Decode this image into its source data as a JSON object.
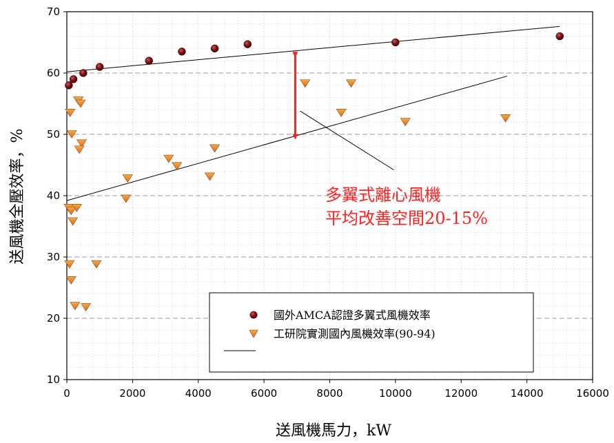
{
  "chart_data": {
    "type": "scatter",
    "xlabel": "送風機馬力，kW",
    "ylabel": "送風機全壓效率，%",
    "xlim": [
      0,
      16000
    ],
    "ylim": [
      10,
      70
    ],
    "x_ticks": [
      0,
      2000,
      4000,
      6000,
      8000,
      10000,
      12000,
      14000,
      16000
    ],
    "y_ticks": [
      10,
      20,
      30,
      40,
      50,
      60,
      70
    ],
    "grid": true,
    "legend_position": "bottom-right",
    "series": [
      {
        "name": "國外AMCA認證多翼式風機效率",
        "marker": "circle",
        "color": "#7a0f14",
        "points": [
          [
            60,
            58
          ],
          [
            200,
            59
          ],
          [
            500,
            60
          ],
          [
            1000,
            61
          ],
          [
            2500,
            62
          ],
          [
            3500,
            63.5
          ],
          [
            4500,
            64
          ],
          [
            5500,
            64.7
          ],
          [
            10000,
            65
          ],
          [
            15000,
            66
          ]
        ]
      },
      {
        "name": "工研院實測國內風機效率(90-94)",
        "marker": "triangle-down",
        "color": "#f08a1e",
        "points": [
          [
            100,
            53.5
          ],
          [
            150,
            50
          ],
          [
            350,
            55.5
          ],
          [
            420,
            55
          ],
          [
            450,
            48.5
          ],
          [
            380,
            47.5
          ],
          [
            60,
            38
          ],
          [
            130,
            37.5
          ],
          [
            300,
            38
          ],
          [
            180,
            35.8
          ],
          [
            80,
            28.8
          ],
          [
            130,
            26.2
          ],
          [
            250,
            22
          ],
          [
            580,
            21.8
          ],
          [
            900,
            28.8
          ],
          [
            1800,
            39.5
          ],
          [
            1850,
            42.8
          ],
          [
            3100,
            46
          ],
          [
            3350,
            44.8
          ],
          [
            4350,
            43.1
          ],
          [
            4500,
            47.7
          ],
          [
            7250,
            58.3
          ],
          [
            8350,
            53.5
          ],
          [
            8650,
            58.3
          ],
          [
            10300,
            52
          ],
          [
            13350,
            52.6
          ]
        ]
      }
    ],
    "lines": [
      {
        "name": "",
        "x": [
          0,
          15000
        ],
        "y": [
          60.2,
          67.6
        ],
        "color": "#000000"
      },
      {
        "name": "",
        "x": [
          0,
          13400
        ],
        "y": [
          39.2,
          59.5
        ],
        "color": "#000000"
      },
      {
        "name": "",
        "x": [
          7100,
          9950
        ],
        "y": [
          53.8,
          44.2
        ],
        "color": "#000000"
      }
    ],
    "annotation": {
      "lines": [
        "多翼式離心風機",
        "平均改善空間20-15%"
      ],
      "arrow_x": 6950,
      "arrow_y": [
        63.8,
        48.8
      ],
      "color": "#ff2020"
    }
  }
}
